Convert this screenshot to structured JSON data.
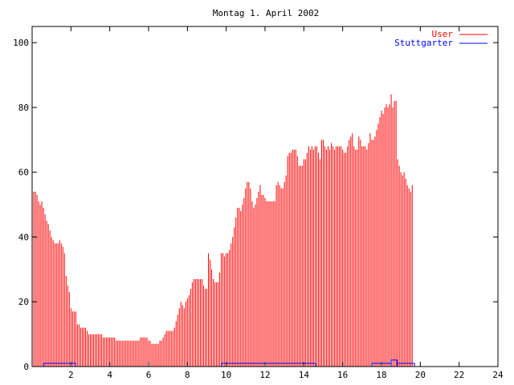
{
  "chart_data": {
    "type": "bar",
    "title": "Montag 1. April 2002",
    "xlim": [
      0,
      24
    ],
    "ylim": [
      0,
      105
    ],
    "x_ticks": [
      2,
      4,
      6,
      8,
      10,
      12,
      14,
      16,
      18,
      20,
      22,
      24
    ],
    "y_ticks": [
      0,
      20,
      40,
      60,
      80,
      100
    ],
    "x_tick_labels": [
      "2",
      "4",
      "6",
      "8",
      "10",
      "12",
      "14",
      "16",
      "18",
      "20",
      "22",
      "24"
    ],
    "y_tick_labels": [
      "0",
      "20",
      "40",
      "60",
      "80",
      "100"
    ],
    "grid": false,
    "legend_position": "top-right",
    "sample_interval_hours": 0.0833333,
    "series": [
      {
        "name": "User",
        "color": "#ff0000",
        "style": "impulses",
        "values": [
          56,
          54,
          54,
          53,
          51,
          50,
          51,
          49,
          47,
          45,
          44,
          42,
          40,
          39,
          38,
          38,
          38,
          39,
          38,
          37,
          35,
          28,
          25,
          23,
          18,
          17,
          17,
          17,
          13,
          13,
          12,
          12,
          12,
          12,
          11,
          10,
          10,
          10,
          10,
          10,
          10,
          10,
          10,
          10,
          9,
          9,
          9,
          9,
          9,
          9,
          9,
          9,
          8,
          8,
          8,
          8,
          8,
          8,
          8,
          8,
          8,
          8,
          8,
          8,
          8,
          8,
          8,
          9,
          9,
          9,
          9,
          9,
          8,
          8,
          7,
          7,
          7,
          7,
          7,
          8,
          8,
          9,
          10,
          11,
          11,
          11,
          11,
          11,
          12,
          14,
          16,
          18,
          20,
          19,
          18,
          20,
          21,
          22,
          24,
          26,
          27,
          27,
          27,
          27,
          27,
          27,
          25,
          24,
          24,
          35,
          33,
          30,
          27,
          26,
          26,
          26,
          29,
          35,
          35,
          34,
          35,
          35,
          36,
          38,
          40,
          43,
          46,
          49,
          49,
          48,
          50,
          52,
          55,
          57,
          57,
          55,
          51,
          49,
          50,
          52,
          54,
          56,
          53,
          53,
          52,
          51,
          51,
          51,
          51,
          51,
          51,
          56,
          57,
          56,
          55,
          55,
          57,
          59,
          65,
          66,
          66,
          67,
          67,
          67,
          65,
          62,
          62,
          62,
          64,
          64,
          66,
          68,
          67,
          68,
          67,
          68,
          68,
          66,
          64,
          70,
          70,
          68,
          67,
          68,
          67,
          69,
          68,
          67,
          68,
          68,
          68,
          68,
          67,
          66,
          66,
          68,
          70,
          71,
          72,
          68,
          67,
          67,
          71,
          70,
          68,
          68,
          68,
          67,
          69,
          72,
          70,
          70,
          71,
          73,
          75,
          77,
          79,
          78,
          80,
          81,
          80,
          81,
          84,
          80,
          82,
          82,
          64,
          62,
          60,
          59,
          60,
          58,
          56,
          55,
          54,
          56
        ]
      },
      {
        "name": "Stuttgarter",
        "color": "#0000ff",
        "style": "line",
        "values": [
          0,
          0,
          0,
          0,
          0,
          0,
          0,
          0,
          0,
          0,
          0,
          0,
          0,
          0,
          0,
          0,
          0,
          0,
          0,
          0,
          0,
          0,
          0,
          0,
          0,
          0,
          0,
          0,
          0,
          0,
          0,
          0,
          0,
          0,
          0,
          0,
          0,
          0,
          0,
          0,
          0,
          0,
          0,
          0,
          0,
          0,
          0,
          0,
          0,
          0,
          0,
          0,
          0,
          0,
          0,
          0,
          0,
          0,
          0,
          0,
          0,
          0,
          0,
          0,
          0,
          0,
          0,
          0,
          0,
          0,
          0,
          0,
          0,
          0,
          0,
          0,
          0,
          0,
          0,
          0,
          0,
          0,
          0,
          0,
          0,
          0,
          0,
          0,
          0,
          0,
          0,
          0,
          0,
          0,
          0,
          0,
          0,
          0,
          0,
          0,
          0,
          0,
          0,
          0,
          0,
          0,
          0,
          0,
          0,
          0,
          0,
          0,
          0,
          0,
          0,
          0,
          0,
          0,
          0,
          0,
          0,
          0,
          0,
          0,
          0,
          0,
          0,
          0,
          0,
          0,
          0,
          0,
          0,
          0,
          0,
          0,
          0,
          0,
          0,
          0,
          0,
          0,
          0,
          0,
          0,
          0,
          0,
          0,
          0,
          0,
          0,
          0,
          0,
          0,
          0,
          0,
          0,
          0,
          0,
          0,
          0,
          0,
          0,
          0,
          0,
          0,
          0,
          0,
          0,
          0,
          0,
          0,
          0,
          0,
          0,
          0,
          0,
          0,
          0,
          0,
          0,
          0,
          0,
          0,
          0,
          0,
          0,
          0,
          0,
          0,
          0,
          0,
          0,
          0,
          0,
          0,
          0,
          0,
          0,
          0,
          0,
          0,
          0,
          0,
          0,
          0,
          0,
          0,
          0,
          0,
          0,
          0,
          0,
          0,
          0,
          0,
          0,
          0,
          0,
          0,
          0,
          0,
          0,
          0,
          0,
          0,
          0,
          0,
          0,
          0,
          0,
          0,
          0,
          0,
          0,
          0,
          0,
          0,
          0,
          0,
          0,
          0,
          0,
          0,
          0,
          0,
          0,
          0,
          0,
          0
        ],
        "segments": [
          {
            "from": 0.6,
            "to": 2.25,
            "value": 1
          },
          {
            "from": 9.75,
            "to": 14.6,
            "value": 1
          },
          {
            "from": 17.5,
            "to": 18.5,
            "value": 1
          },
          {
            "from": 18.5,
            "to": 18.8,
            "value": 2
          },
          {
            "from": 18.8,
            "to": 19.7,
            "value": 1
          }
        ]
      }
    ]
  }
}
